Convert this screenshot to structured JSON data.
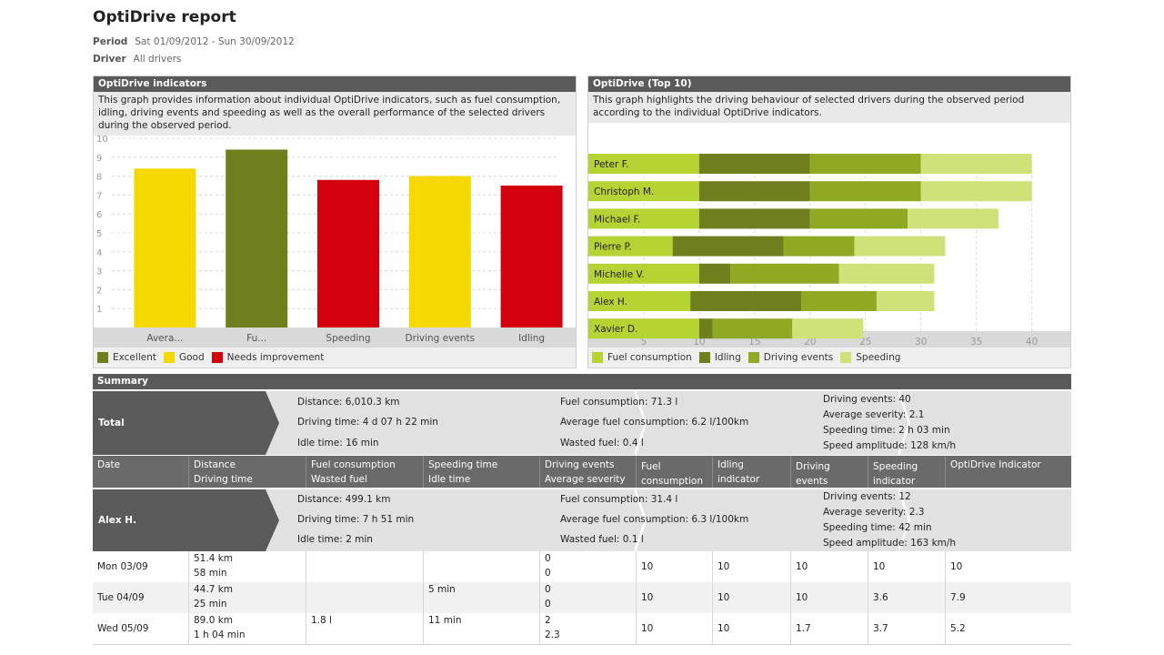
{
  "report": {
    "title": "OptiDrive report",
    "period_label": "Period",
    "period_value": "Sat 01/09/2012 - Sun 30/09/2012",
    "driver_label": "Driver",
    "driver_value": "All drivers"
  },
  "indicators_panel": {
    "title": "OptiDrive indicators",
    "description": "This graph provides information about individual OptiDrive indicators, such as fuel consumption, idling, driving events and speeding as well as the overall performance of the selected drivers during the observed period.",
    "legend": [
      {
        "label": "Excellent",
        "color": "#6f7f1d"
      },
      {
        "label": "Good",
        "color": "#f5d800"
      },
      {
        "label": "Needs improvement",
        "color": "#d3000d"
      }
    ]
  },
  "top10_panel": {
    "title": "OptiDrive (Top 10)",
    "description": "This graph highlights the driving behaviour of selected drivers during the observed period according to the individual OptiDrive indicators.",
    "legend": [
      {
        "label": "Fuel consumption",
        "color": "#b6d334"
      },
      {
        "label": "Idling",
        "color": "#6f7f1d"
      },
      {
        "label": "Driving events",
        "color": "#8faa22"
      },
      {
        "label": "Speeding",
        "color": "#cfe27a"
      }
    ]
  },
  "chart_data": [
    {
      "type": "bar",
      "title": "OptiDrive indicators",
      "categories": [
        "Avera...",
        "Fu...",
        "Speeding",
        "Driving events",
        "Idling"
      ],
      "values": [
        8.4,
        9.4,
        7.8,
        8.0,
        7.5
      ],
      "colors": [
        "#f5d800",
        "#6f7f1d",
        "#d3000d",
        "#f5d800",
        "#d3000d"
      ],
      "ylim": [
        0,
        10
      ],
      "yticks": [
        1,
        2,
        3,
        4,
        5,
        6,
        7,
        8,
        9,
        10
      ],
      "grid": true,
      "xlabel": "",
      "ylabel": ""
    },
    {
      "type": "bar",
      "orientation": "horizontal",
      "stacked": true,
      "title": "OptiDrive (Top 10)",
      "categories": [
        "Peter F.",
        "Christoph M.",
        "Michael F.",
        "Pierre P.",
        "Michelle V.",
        "Alex H.",
        "Xavier D."
      ],
      "series": [
        {
          "name": "Fuel consumption",
          "color": "#b6d334",
          "values": [
            10,
            10,
            10,
            7.6,
            10,
            9.2,
            10
          ]
        },
        {
          "name": "Idling",
          "color": "#6f7f1d",
          "values": [
            10,
            10,
            10,
            10,
            2.8,
            10,
            1.2
          ]
        },
        {
          "name": "Driving events",
          "color": "#8faa22",
          "values": [
            10,
            10,
            8.8,
            6.4,
            9.8,
            6.8,
            7.2
          ]
        },
        {
          "name": "Speeding",
          "color": "#cfe27a",
          "values": [
            10,
            10,
            8.2,
            8.2,
            8.6,
            5.2,
            6.4
          ]
        }
      ],
      "xlim": [
        0,
        42
      ],
      "xticks": [
        5,
        10,
        15,
        20,
        25,
        30,
        35,
        40
      ],
      "grid": true
    }
  ],
  "summary": {
    "title": "Summary",
    "total": {
      "label": "Total",
      "col1": [
        "Distance: 6,010.3 km",
        "Driving time: 4 d 07 h 22 min",
        "Idle time:  16 min"
      ],
      "col2": [
        "Fuel consumption:  71.3 l",
        "Average fuel consumption: 6.2 l/100km",
        "Wasted fuel:  0.4 l"
      ],
      "col3": [
        "Driving events: 40",
        "Average severity: 2.1",
        "Speeding time: 2 h 03 min",
        "Speed amplitude: 128 km/h"
      ]
    },
    "columns": [
      [
        "Date",
        ""
      ],
      [
        "Distance",
        "Driving time"
      ],
      [
        "Fuel consumption",
        "Wasted fuel"
      ],
      [
        "Speeding time",
        "Idle time"
      ],
      [
        "Driving events",
        "Average severity"
      ],
      [
        "Fuel",
        "consumption"
      ],
      [
        "Idling indicator",
        ""
      ],
      [
        "Driving events",
        "indicator"
      ],
      [
        "Speeding",
        "indicator"
      ],
      [
        "OptiDrive Indicator",
        ""
      ]
    ],
    "driver": {
      "label": "Alex H.",
      "col1": [
        "Distance: 499.1 km",
        "Driving time: 7 h 51 min",
        "Idle time:  2 min"
      ],
      "col2": [
        "Fuel consumption: 31.4 l",
        "Average fuel consumption: 6.3 l/100km",
        "Wasted fuel:  0.1 l"
      ],
      "col3": [
        "Driving events: 12",
        "Average severity: 2.3",
        "Speeding time: 42 min",
        "Speed amplitude: 163 km/h"
      ]
    },
    "rows": [
      {
        "date": "Mon 03/09",
        "distance": "51.4 km",
        "driving_time": "58 min",
        "fuel": "",
        "wasted": "",
        "speeding": "",
        "idle": "",
        "events": "0",
        "severity": "0",
        "fuel_ind": "10",
        "idling_ind": "10",
        "events_ind": "10",
        "speeding_ind": "10",
        "optidrive": "10"
      },
      {
        "date": "Tue 04/09",
        "distance": "44.7 km",
        "driving_time": "25 min",
        "fuel": "",
        "wasted": "",
        "speeding": "5 min",
        "idle": "",
        "events": "0",
        "severity": "0",
        "fuel_ind": "10",
        "idling_ind": "10",
        "events_ind": "10",
        "speeding_ind": "3.6",
        "optidrive": "7.9"
      },
      {
        "date": "Wed 05/09",
        "distance": "89.0 km",
        "driving_time": "1 h 04 min",
        "fuel": "1.8 l",
        "wasted": "",
        "speeding": "11 min",
        "idle": "",
        "events": "2",
        "severity": "2.3",
        "fuel_ind": "10",
        "idling_ind": "10",
        "events_ind": "1.7",
        "speeding_ind": "3.7",
        "optidrive": "5.2"
      }
    ]
  }
}
